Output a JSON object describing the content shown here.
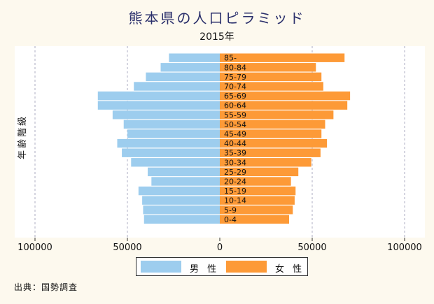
{
  "chart_data": {
    "type": "bar",
    "orientation": "horizontal-pyramid",
    "title": "熊本県の人口ピラミッド",
    "subtitle": "2015年",
    "ylabel": "年齢階級",
    "source": "出典：国勢調査",
    "xlim": [
      -100000,
      100000
    ],
    "x_ticks": [
      -100000,
      -50000,
      0,
      50000,
      100000
    ],
    "x_tick_labels": [
      "100000",
      "50000",
      "0",
      "50000",
      "100000"
    ],
    "categories": [
      "0-4",
      "5-9",
      "10-14",
      "15-19",
      "20-24",
      "25-29",
      "30-34",
      "35-39",
      "40-44",
      "45-49",
      "50-54",
      "55-59",
      "60-64",
      "65-69",
      "70-74",
      "75-79",
      "80-84",
      "85-"
    ],
    "series": [
      {
        "name": "男 性",
        "color": "#9dcdee",
        "values": [
          41000,
          41500,
          42000,
          44000,
          37000,
          39000,
          48000,
          53000,
          55500,
          50000,
          52000,
          58000,
          66000,
          66000,
          46500,
          40000,
          32000,
          27500
        ]
      },
      {
        "name": "女 性",
        "color": "#fd9a37",
        "values": [
          37500,
          39500,
          40500,
          41000,
          38500,
          42500,
          49500,
          54500,
          58000,
          55000,
          57000,
          61500,
          69000,
          70500,
          56000,
          55000,
          52000,
          67500
        ]
      }
    ],
    "grid": true,
    "legend_position": "bottom"
  }
}
